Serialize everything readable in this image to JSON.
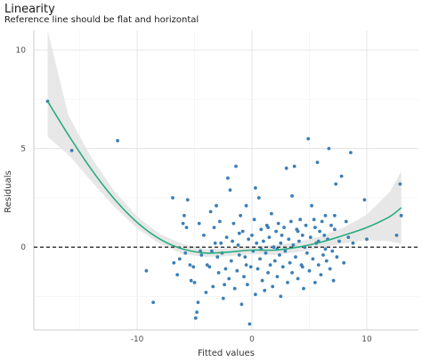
{
  "chart_data": {
    "type": "scatter",
    "title": "Linearity",
    "subtitle": "Reference line should be flat and horizontal",
    "xlabel": "Fitted values",
    "ylabel": "Residuals",
    "xlim": [
      -19,
      14.5
    ],
    "ylim": [
      -4.2,
      11.0
    ],
    "x_ticks": [
      -10,
      0,
      10
    ],
    "y_ticks": [
      0,
      5,
      10
    ],
    "grid": true,
    "reference_line_y": 0,
    "colors": {
      "points": "#3a7fb5",
      "smooth": "#2bab7e",
      "band": "#e6e6e6",
      "reference": "#000000"
    },
    "points": [
      [
        -17.8,
        7.4
      ],
      [
        -15.7,
        4.9
      ],
      [
        -11.7,
        5.4
      ],
      [
        -9.2,
        -1.2
      ],
      [
        -8.6,
        -2.8
      ],
      [
        -6.9,
        2.5
      ],
      [
        -6.8,
        -0.8
      ],
      [
        -6.3,
        -0.6
      ],
      [
        -6.0,
        1.2
      ],
      [
        -5.9,
        1.6
      ],
      [
        -5.8,
        -0.3
      ],
      [
        -5.6,
        2.4
      ],
      [
        -5.4,
        -0.9
      ],
      [
        -5.3,
        -1.7
      ],
      [
        -5.1,
        -1.0
      ],
      [
        -5.0,
        -1.8
      ],
      [
        -4.9,
        -3.6
      ],
      [
        -4.8,
        -3.3
      ],
      [
        -4.7,
        -2.8
      ],
      [
        -4.6,
        1.2
      ],
      [
        -4.4,
        -0.4
      ],
      [
        -4.2,
        0.6
      ],
      [
        -4.0,
        -2.3
      ],
      [
        -3.9,
        -0.9
      ],
      [
        -3.7,
        -1.0
      ],
      [
        -3.6,
        1.8
      ],
      [
        -3.5,
        -0.2
      ],
      [
        -3.4,
        -2.0
      ],
      [
        -3.2,
        0.2
      ],
      [
        -3.1,
        2.1
      ],
      [
        -3.0,
        -0.5
      ],
      [
        -2.9,
        -1.3
      ],
      [
        -2.8,
        1.3
      ],
      [
        -2.6,
        -0.3
      ],
      [
        -2.5,
        -2.6
      ],
      [
        -2.3,
        -1.1
      ],
      [
        -2.2,
        0.5
      ],
      [
        -2.1,
        3.5
      ],
      [
        -2.0,
        -1.6
      ],
      [
        -1.9,
        2.9
      ],
      [
        -1.8,
        -0.7
      ],
      [
        -1.7,
        0.3
      ],
      [
        -1.6,
        1.2
      ],
      [
        -1.5,
        -2.1
      ],
      [
        -1.4,
        4.1
      ],
      [
        -1.3,
        -1.2
      ],
      [
        -1.2,
        0.1
      ],
      [
        -1.1,
        -0.4
      ],
      [
        -1.0,
        1.6
      ],
      [
        -0.9,
        -2.9
      ],
      [
        -0.8,
        0.8
      ],
      [
        -0.7,
        -1.5
      ],
      [
        -0.6,
        -0.5
      ],
      [
        -0.5,
        2.1
      ],
      [
        -0.4,
        -1.9
      ],
      [
        -0.3,
        0.4
      ],
      [
        -0.2,
        -3.9
      ],
      [
        -0.1,
        -1.0
      ],
      [
        0.0,
        0.6
      ],
      [
        0.1,
        -0.2
      ],
      [
        0.2,
        1.4
      ],
      [
        0.3,
        -2.4
      ],
      [
        0.4,
        0.2
      ],
      [
        0.5,
        -1.1
      ],
      [
        0.6,
        2.5
      ],
      [
        0.7,
        -0.6
      ],
      [
        0.8,
        0.9
      ],
      [
        0.9,
        -1.7
      ],
      [
        1.0,
        0.3
      ],
      [
        1.1,
        -2.2
      ],
      [
        1.2,
        -0.3
      ],
      [
        1.3,
        1.1
      ],
      [
        1.4,
        -1.3
      ],
      [
        1.5,
        0.5
      ],
      [
        1.6,
        -0.9
      ],
      [
        1.7,
        1.7
      ],
      [
        1.8,
        -2.0
      ],
      [
        1.9,
        0.0
      ],
      [
        2.0,
        -0.7
      ],
      [
        2.1,
        0.8
      ],
      [
        2.2,
        -1.5
      ],
      [
        2.3,
        1.2
      ],
      [
        2.4,
        -0.4
      ],
      [
        2.5,
        -2.5
      ],
      [
        2.6,
        0.6
      ],
      [
        2.7,
        -1.0
      ],
      [
        2.8,
        1.0
      ],
      [
        2.9,
        -0.2
      ],
      [
        3.0,
        4.0
      ],
      [
        3.1,
        -1.8
      ],
      [
        3.2,
        0.4
      ],
      [
        3.3,
        -0.8
      ],
      [
        3.4,
        1.3
      ],
      [
        3.5,
        -1.3
      ],
      [
        3.6,
        0.1
      ],
      [
        3.7,
        4.1
      ],
      [
        3.8,
        -0.5
      ],
      [
        3.9,
        0.9
      ],
      [
        4.0,
        -1.6
      ],
      [
        4.1,
        0.3
      ],
      [
        4.2,
        1.4
      ],
      [
        4.3,
        -0.9
      ],
      [
        4.4,
        0.6
      ],
      [
        4.5,
        -2.1
      ],
      [
        4.6,
        0.0
      ],
      [
        4.7,
        1.1
      ],
      [
        4.8,
        -0.3
      ],
      [
        4.9,
        5.5
      ],
      [
        5.0,
        -1.2
      ],
      [
        5.1,
        0.5
      ],
      [
        5.2,
        2.1
      ],
      [
        5.3,
        -0.6
      ],
      [
        5.4,
        1.4
      ],
      [
        5.5,
        -1.8
      ],
      [
        5.6,
        0.2
      ],
      [
        5.7,
        4.3
      ],
      [
        5.8,
        -0.9
      ],
      [
        5.9,
        0.8
      ],
      [
        6.0,
        -1.4
      ],
      [
        6.1,
        1.3
      ],
      [
        6.2,
        -0.4
      ],
      [
        6.3,
        0.6
      ],
      [
        6.4,
        1.6
      ],
      [
        6.5,
        -0.7
      ],
      [
        6.6,
        0.4
      ],
      [
        6.7,
        5.0
      ],
      [
        6.8,
        -1.1
      ],
      [
        6.9,
        1.1
      ],
      [
        7.0,
        -0.2
      ],
      [
        7.1,
        -1.7
      ],
      [
        7.2,
        0.9
      ],
      [
        7.3,
        3.2
      ],
      [
        7.4,
        -0.5
      ],
      [
        7.6,
        0.3
      ],
      [
        7.8,
        3.6
      ],
      [
        8.0,
        -0.8
      ],
      [
        8.2,
        1.3
      ],
      [
        8.4,
        0.5
      ],
      [
        8.6,
        4.8
      ],
      [
        8.8,
        0.2
      ],
      [
        9.8,
        2.4
      ],
      [
        10.0,
        0.4
      ],
      [
        12.6,
        0.6
      ],
      [
        12.9,
        3.2
      ],
      [
        13.0,
        1.6
      ],
      [
        -6.5,
        -1.4
      ],
      [
        -5.7,
        1.0
      ],
      [
        -4.5,
        -0.2
      ],
      [
        -3.3,
        1.0
      ],
      [
        -2.4,
        -1.9
      ],
      [
        -1.1,
        0.7
      ],
      [
        0.3,
        3.0
      ],
      [
        1.4,
        1.0
      ],
      [
        2.2,
        -0.1
      ],
      [
        3.5,
        2.6
      ],
      [
        4.4,
        -1.0
      ],
      [
        5.5,
        1.0
      ],
      [
        6.4,
        -0.1
      ],
      [
        7.2,
        1.6
      ],
      [
        -0.5,
        -0.9
      ],
      [
        0.8,
        -0.1
      ],
      [
        2.5,
        0.2
      ],
      [
        4.0,
        0.8
      ],
      [
        5.8,
        0.3
      ],
      [
        -2.7,
        0.2
      ]
    ],
    "smooth": {
      "x": [
        -17.8,
        -16.0,
        -14.0,
        -12.0,
        -10.0,
        -8.0,
        -6.0,
        -4.0,
        -2.0,
        0.0,
        2.0,
        4.0,
        6.0,
        8.0,
        10.0,
        12.0,
        13.0
      ],
      "y": [
        7.4,
        5.7,
        3.95,
        2.45,
        1.25,
        0.4,
        -0.1,
        -0.3,
        -0.25,
        -0.15,
        -0.15,
        0.0,
        0.25,
        0.6,
        1.0,
        1.55,
        2.0
      ],
      "lower": [
        5.6,
        4.7,
        3.35,
        2.05,
        0.95,
        0.15,
        -0.35,
        -0.5,
        -0.45,
        -0.35,
        -0.4,
        -0.25,
        -0.05,
        0.2,
        0.35,
        0.3,
        0.15
      ],
      "upper": [
        11.0,
        6.7,
        4.55,
        2.85,
        1.55,
        0.65,
        0.15,
        -0.1,
        -0.05,
        0.05,
        0.1,
        0.25,
        0.55,
        1.0,
        1.65,
        2.8,
        3.85
      ]
    }
  }
}
